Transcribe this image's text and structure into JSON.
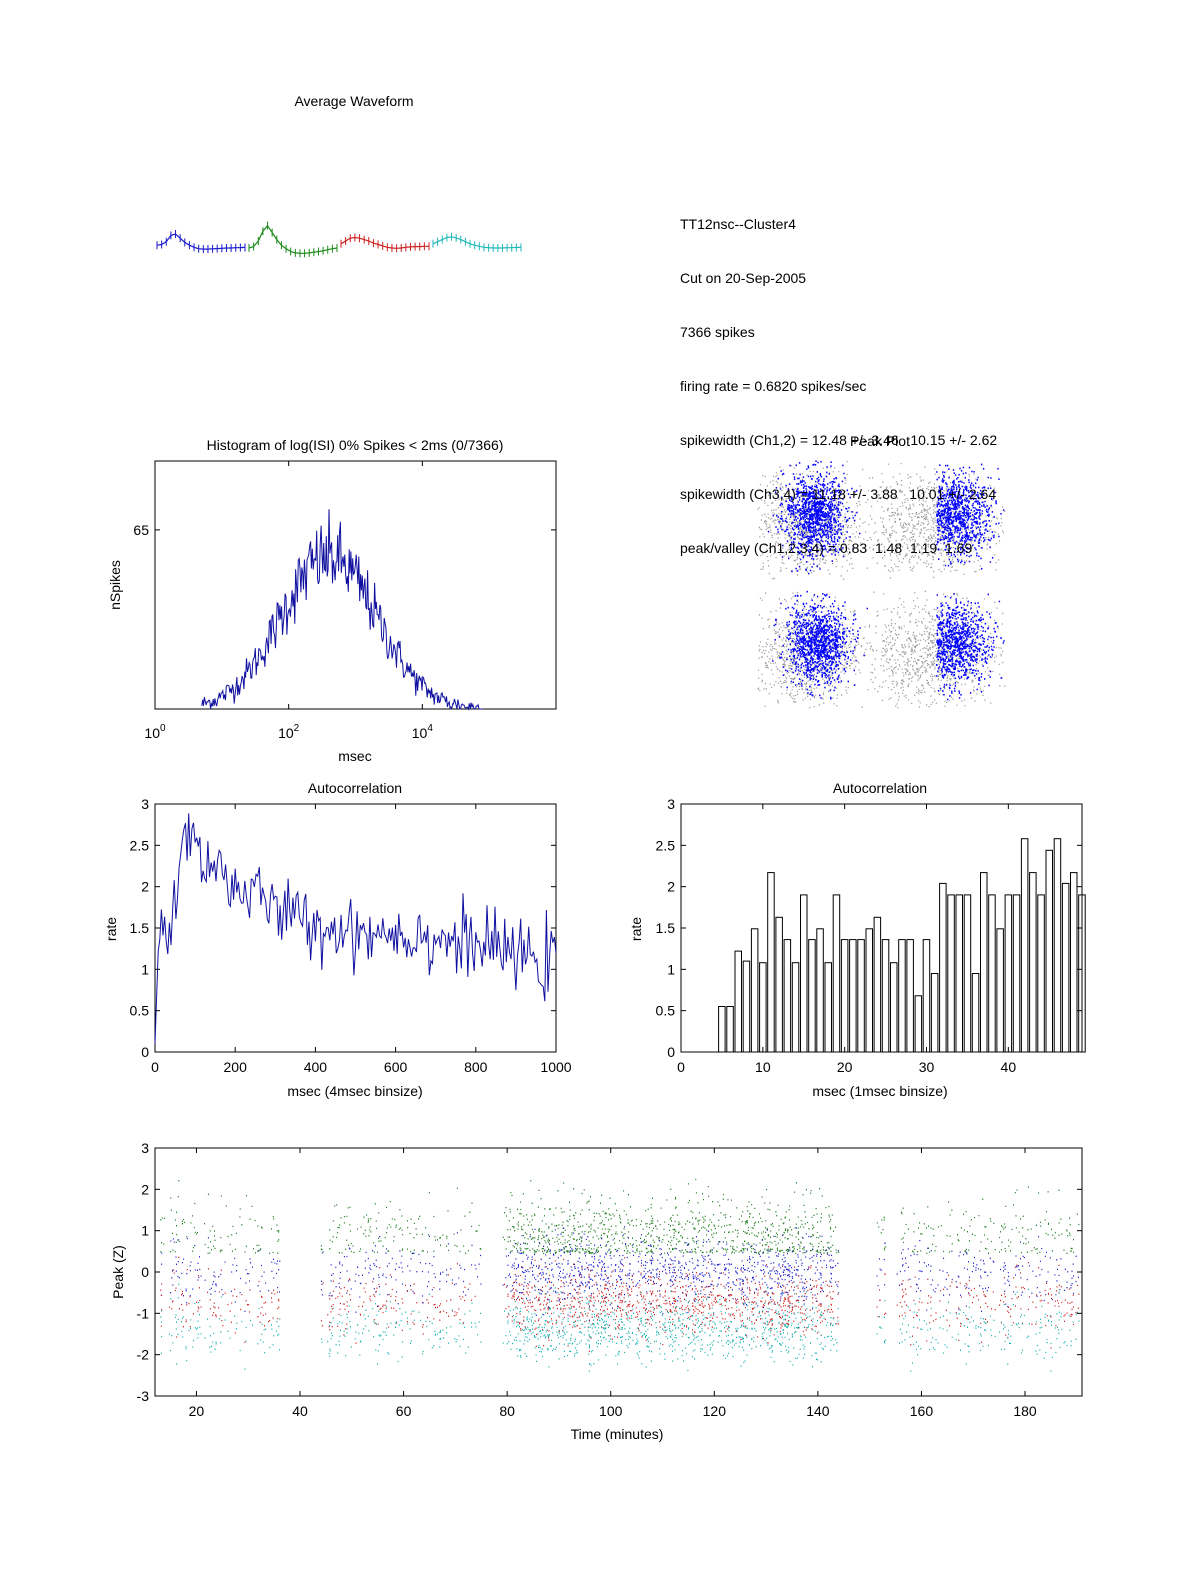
{
  "info_lines": [
    "TT12nsc--Cluster4",
    "Cut on 20-Sep-2005",
    "7366 spikes",
    "firing rate = 0.6820 spikes/sec",
    "spikewidth (Ch1,2) = 12.48 +/- 3.46   10.15 +/- 2.62",
    "spikewidth (Ch3,4) = 11.18 +/- 3.88   10.01 +/- 2.64",
    "peak/valley (Ch1,2,3,4) = 0.83  1.48  1.19  1.69"
  ],
  "chart_data": [
    {
      "id": "waveform",
      "type": "line",
      "title": "Average Waveform",
      "channel_colors": [
        "#1a1acc",
        "#1a8a1a",
        "#cc2020",
        "#22b8b8"
      ],
      "series": [
        {
          "values": [
            0.2,
            0.25,
            0.45,
            0.9,
            1.0,
            0.7,
            0.4,
            0.2,
            0.05,
            -0.05,
            -0.08,
            -0.08,
            -0.06,
            -0.04,
            -0.02,
            0.0,
            0.0,
            0.02,
            0.03,
            0.04
          ]
        },
        {
          "values": [
            0.0,
            0.1,
            0.5,
            1.2,
            1.6,
            1.1,
            0.6,
            0.2,
            -0.05,
            -0.25,
            -0.35,
            -0.38,
            -0.38,
            -0.35,
            -0.3,
            -0.25,
            -0.2,
            -0.12,
            -0.05,
            0.0
          ]
        },
        {
          "values": [
            0.3,
            0.5,
            0.7,
            0.75,
            0.7,
            0.6,
            0.5,
            0.35,
            0.25,
            0.15,
            0.05,
            0.0,
            -0.02,
            0.0,
            0.05,
            0.08,
            0.1,
            0.1,
            0.12,
            0.12
          ]
        },
        {
          "values": [
            0.3,
            0.45,
            0.6,
            0.75,
            0.8,
            0.72,
            0.6,
            0.45,
            0.3,
            0.2,
            0.12,
            0.05,
            0.02,
            0.0,
            0.0,
            0.0,
            0.02,
            0.02,
            0.04,
            0.04
          ]
        }
      ]
    },
    {
      "id": "isi",
      "type": "line",
      "title": "Histogram of log(ISI) 0% Spikes < 2ms (0/7366)",
      "xlabel": "msec",
      "ylabel": "nSpikes",
      "xscale": "log",
      "xlim": [
        1,
        1000000
      ],
      "ylim": [
        0,
        90
      ],
      "x_ticks": [
        "10^0",
        "10^2",
        "10^4"
      ],
      "y_ticks": [
        65
      ],
      "envelope": {
        "center_log10": 2.6,
        "sigma": 0.72,
        "peak": 55,
        "start_log10": 0.7,
        "end_log10": 4.9
      }
    },
    {
      "id": "peak_plot",
      "type": "scatter",
      "title": "Peak Plot",
      "series": [
        {
          "name": "",
          "color": "#999999"
        },
        {
          "name": "",
          "color": "#0000ff"
        }
      ]
    },
    {
      "id": "autocorr_4ms",
      "type": "line",
      "title": "Autocorrelation",
      "xlabel": "msec (4msec binsize)",
      "ylabel": "rate",
      "xlim": [
        0,
        1000
      ],
      "ylim": [
        0,
        3
      ],
      "x_ticks": [
        0,
        200,
        400,
        600,
        800,
        1000
      ],
      "y_ticks": [
        0,
        0.5,
        1,
        1.5,
        2,
        2.5,
        3
      ],
      "color": "#1010a0",
      "trend": [
        [
          0,
          0.1
        ],
        [
          10,
          1.5
        ],
        [
          40,
          1.5
        ],
        [
          75,
          2.7
        ],
        [
          100,
          2.5
        ],
        [
          200,
          2.0
        ],
        [
          400,
          1.5
        ],
        [
          600,
          1.45
        ],
        [
          800,
          1.3
        ],
        [
          1000,
          1.05
        ]
      ]
    },
    {
      "id": "autocorr_1ms",
      "type": "bar",
      "title": "Autocorrelation",
      "xlabel": "msec (1msec binsize)",
      "ylabel": "rate",
      "xlim": [
        0,
        49
      ],
      "ylim": [
        0,
        3
      ],
      "x_ticks": [
        0,
        10,
        20,
        30,
        40
      ],
      "y_ticks": [
        0,
        0.5,
        1,
        1.5,
        2,
        2.5,
        3
      ],
      "x": [
        5,
        6,
        7,
        8,
        9,
        10,
        11,
        12,
        13,
        14,
        15,
        16,
        17,
        18,
        19,
        20,
        21,
        22,
        23,
        24,
        25,
        26,
        27,
        28,
        29,
        30,
        31,
        32,
        33,
        34,
        35,
        36,
        37,
        38,
        39,
        40,
        41,
        42,
        43,
        44,
        45,
        46,
        47,
        48,
        49
      ],
      "values": [
        0.55,
        0.55,
        1.22,
        1.1,
        1.49,
        1.08,
        2.17,
        1.63,
        1.36,
        1.08,
        1.9,
        1.36,
        1.49,
        1.08,
        1.9,
        1.36,
        1.36,
        1.36,
        1.49,
        1.63,
        1.36,
        1.08,
        1.36,
        1.36,
        0.68,
        1.36,
        0.95,
        2.04,
        1.9,
        1.9,
        1.9,
        0.95,
        2.17,
        1.9,
        1.49,
        1.9,
        1.9,
        2.58,
        2.17,
        1.9,
        2.44,
        2.58,
        2.04,
        2.17,
        1.9
      ]
    },
    {
      "id": "peak_time",
      "type": "scatter",
      "xlabel": "Time (minutes)",
      "ylabel": "Peak (Z)",
      "xlim": [
        12,
        191
      ],
      "ylim": [
        -3,
        3
      ],
      "x_ticks": [
        20,
        40,
        60,
        80,
        100,
        120,
        140,
        160,
        180
      ],
      "y_ticks": [
        -3,
        -2,
        -1,
        0,
        1,
        2,
        3
      ],
      "series": [
        {
          "name": "",
          "color": "#1a7a1a",
          "floor": 0.45,
          "center": 0.9
        },
        {
          "name": "",
          "color": "#1a1acc",
          "center": 0.0
        },
        {
          "name": "",
          "color": "#cc1a1a",
          "center": -0.75
        },
        {
          "name": "",
          "color": "#10b0b0",
          "center": -1.4
        }
      ],
      "gaps_minutes": [
        [
          36,
          44
        ],
        [
          75,
          79
        ],
        [
          144,
          151
        ],
        [
          153,
          155
        ]
      ]
    }
  ]
}
